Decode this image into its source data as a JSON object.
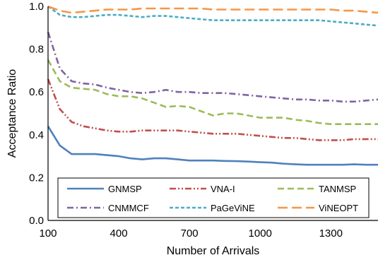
{
  "chart_data": {
    "type": "line",
    "xlabel": "Number of Arrivals",
    "ylabel": "Acceptance Ratio",
    "xlim": [
      100,
      1500
    ],
    "ylim": [
      0,
      1.0
    ],
    "x_ticks": [
      100,
      400,
      700,
      1000,
      1300
    ],
    "y_ticks": [
      0.0,
      0.2,
      0.4,
      0.6,
      0.8,
      1.0
    ],
    "x_tick_labels": [
      "100",
      "400",
      "700",
      "1000",
      "1300"
    ],
    "y_tick_labels": [
      "0.0",
      "0.2",
      "0.4",
      "0.6",
      "0.8",
      "1.0"
    ],
    "grid": false,
    "legend_position": "bottom-inside",
    "x": [
      100,
      150,
      200,
      250,
      300,
      350,
      400,
      450,
      500,
      550,
      600,
      650,
      700,
      750,
      800,
      850,
      900,
      950,
      1000,
      1050,
      1100,
      1150,
      1200,
      1250,
      1300,
      1350,
      1400,
      1450,
      1500
    ],
    "series": [
      {
        "name": "GNMSP",
        "color": "#4f81bd",
        "dash": "solid",
        "values": [
          0.44,
          0.35,
          0.31,
          0.31,
          0.31,
          0.305,
          0.3,
          0.29,
          0.285,
          0.29,
          0.29,
          0.285,
          0.28,
          0.28,
          0.28,
          0.278,
          0.277,
          0.275,
          0.272,
          0.27,
          0.265,
          0.262,
          0.26,
          0.26,
          0.26,
          0.26,
          0.262,
          0.26,
          0.26
        ]
      },
      {
        "name": "VNA-I",
        "color": "#c0504d",
        "dash": "dash-dot-dot",
        "values": [
          0.66,
          0.52,
          0.46,
          0.44,
          0.43,
          0.42,
          0.415,
          0.415,
          0.42,
          0.42,
          0.42,
          0.42,
          0.415,
          0.41,
          0.405,
          0.405,
          0.405,
          0.4,
          0.395,
          0.39,
          0.385,
          0.385,
          0.38,
          0.375,
          0.375,
          0.375,
          0.38,
          0.38,
          0.38
        ]
      },
      {
        "name": "TANMSP",
        "color": "#9bbb59",
        "dash": "dash",
        "values": [
          0.75,
          0.65,
          0.62,
          0.615,
          0.61,
          0.59,
          0.58,
          0.58,
          0.57,
          0.55,
          0.53,
          0.535,
          0.53,
          0.51,
          0.49,
          0.5,
          0.5,
          0.49,
          0.48,
          0.48,
          0.48,
          0.47,
          0.465,
          0.455,
          0.45,
          0.45,
          0.45,
          0.45,
          0.45
        ]
      },
      {
        "name": "CNMMCF",
        "color": "#8064a2",
        "dash": "dash-dot",
        "values": [
          0.88,
          0.71,
          0.65,
          0.64,
          0.635,
          0.62,
          0.61,
          0.6,
          0.595,
          0.6,
          0.61,
          0.6,
          0.6,
          0.595,
          0.595,
          0.595,
          0.59,
          0.585,
          0.58,
          0.575,
          0.57,
          0.565,
          0.565,
          0.56,
          0.56,
          0.555,
          0.555,
          0.56,
          0.565
        ]
      },
      {
        "name": "PaGeViNE",
        "color": "#4bacc6",
        "dash": "short-dash",
        "values": [
          1.0,
          0.96,
          0.95,
          0.95,
          0.955,
          0.96,
          0.96,
          0.955,
          0.95,
          0.955,
          0.955,
          0.95,
          0.945,
          0.94,
          0.935,
          0.935,
          0.935,
          0.935,
          0.935,
          0.935,
          0.935,
          0.935,
          0.935,
          0.935,
          0.93,
          0.925,
          0.92,
          0.915,
          0.91
        ]
      },
      {
        "name": "ViNEOPT",
        "color": "#f79646",
        "dash": "long-dash",
        "values": [
          1.0,
          0.98,
          0.97,
          0.975,
          0.98,
          0.985,
          0.985,
          0.985,
          0.99,
          0.99,
          0.99,
          0.99,
          0.99,
          0.99,
          0.985,
          0.985,
          0.985,
          0.985,
          0.985,
          0.985,
          0.985,
          0.985,
          0.985,
          0.985,
          0.985,
          0.98,
          0.98,
          0.975,
          0.97
        ]
      }
    ]
  }
}
